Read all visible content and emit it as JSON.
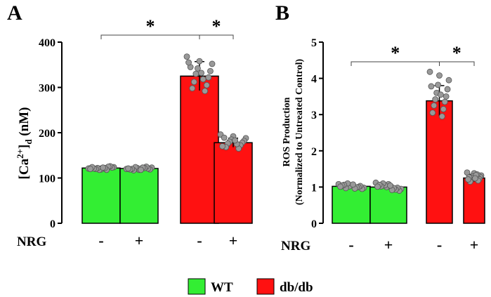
{
  "colors": {
    "wt": "#33ee33",
    "dbdb": "#ff1111",
    "dot": "#999999"
  },
  "chart_data": [
    {
      "panel": "A",
      "type": "bar",
      "ylabel": "[Ca2+]d (nM)",
      "ylabel_parts": {
        "base": "[Ca",
        "sup": "2+",
        "close": "]",
        "sub": "d",
        "unit": " (nM)"
      },
      "ylim": [
        0,
        400
      ],
      "yticks": [
        "0",
        "100",
        "200",
        "300",
        "400"
      ],
      "xlabel": "NRG",
      "bars": [
        {
          "group": "WT",
          "nrg": "-",
          "value": 122,
          "err": 4,
          "points": [
            121,
            119,
            124,
            118,
            123,
            122,
            126,
            120,
            125,
            121,
            118,
            124,
            122,
            120,
            123
          ]
        },
        {
          "group": "WT",
          "nrg": "+",
          "value": 121,
          "err": 4,
          "points": [
            120,
            118,
            123,
            122,
            119,
            124,
            121,
            117,
            125,
            120,
            122,
            119,
            123,
            121,
            118
          ]
        },
        {
          "group": "db/db",
          "nrg": "-",
          "value": 325,
          "err": 32,
          "points": [
            368,
            358,
            352,
            342,
            336,
            330,
            322,
            312,
            305,
            298,
            292,
            345,
            318,
            355,
            332
          ]
        },
        {
          "group": "db/db",
          "nrg": "+",
          "value": 178,
          "err": 10,
          "points": [
            196,
            192,
            188,
            185,
            182,
            180,
            178,
            176,
            172,
            168,
            165,
            189,
            175,
            170,
            183
          ]
        }
      ],
      "significance": [
        {
          "from": 0,
          "to": 2,
          "label": "*"
        },
        {
          "from": 2,
          "to": 3,
          "label": "*"
        }
      ]
    },
    {
      "panel": "B",
      "type": "bar",
      "ylabel": "ROS Production",
      "ylabel2": "(Normalized to Untreated Control)",
      "ylim": [
        0,
        5
      ],
      "yticks": [
        "0",
        "1",
        "2",
        "3",
        "4",
        "5"
      ],
      "xlabel": "NRG",
      "bars": [
        {
          "group": "WT",
          "nrg": "-",
          "value": 1.02,
          "err": 0.05,
          "points": [
            1.08,
            1.05,
            0.98,
            1.02,
            0.95,
            1.1,
            1.03,
            0.97,
            1.0,
            1.06,
            0.99,
            1.04,
            0.96,
            1.01,
            1.07
          ]
        },
        {
          "group": "WT",
          "nrg": "+",
          "value": 1.0,
          "err": 0.06,
          "points": [
            1.12,
            1.08,
            0.95,
            1.0,
            0.9,
            1.05,
            0.98,
            1.1,
            0.93,
            1.02,
            0.97,
            1.06,
            0.92,
            1.01,
            1.04
          ]
        },
        {
          "group": "db/db",
          "nrg": "-",
          "value": 3.38,
          "err": 0.42,
          "points": [
            4.18,
            4.08,
            3.95,
            3.82,
            3.7,
            3.6,
            3.5,
            3.42,
            3.35,
            3.25,
            3.15,
            3.05,
            2.95,
            3.78,
            3.55
          ]
        },
        {
          "group": "db/db",
          "nrg": "+",
          "value": 1.25,
          "err": 0.1,
          "points": [
            1.4,
            1.38,
            1.32,
            1.3,
            1.28,
            1.25,
            1.22,
            1.2,
            1.18,
            1.15,
            1.35,
            1.27,
            1.33,
            1.21,
            1.24
          ]
        }
      ],
      "significance": [
        {
          "from": 0,
          "to": 2,
          "label": "*"
        },
        {
          "from": 2,
          "to": 3,
          "label": "*"
        }
      ]
    }
  ],
  "legend": [
    {
      "label": "WT",
      "color_key": "wt"
    },
    {
      "label": "db/db",
      "color_key": "dbdb"
    }
  ]
}
